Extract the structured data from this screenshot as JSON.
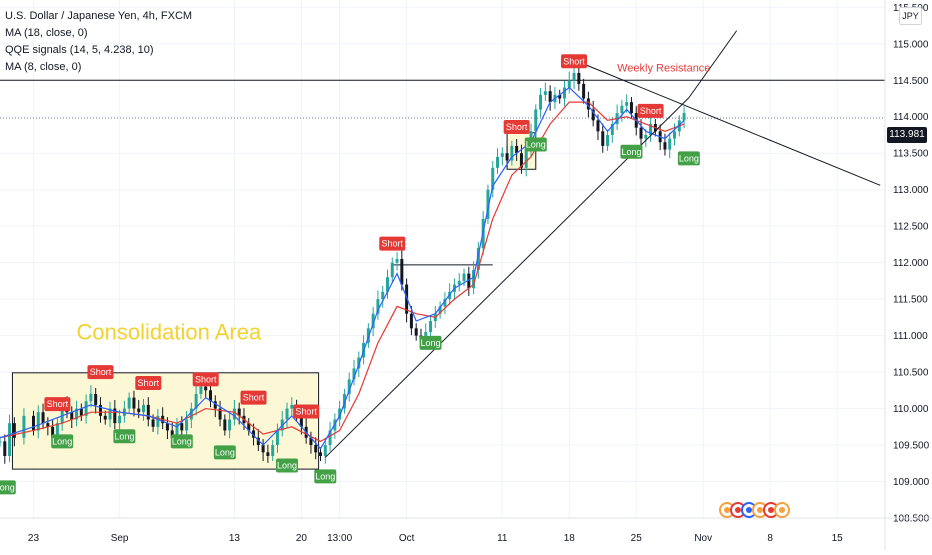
{
  "legend": {
    "title": "U.S. Dollar / Japanese Yen, 4h, FXCM",
    "ma1": "MA (18, close, 0)",
    "qqe": "QQE signals (14, 5, 4.238, 10)",
    "ma2": "MA (8, close, 0)"
  },
  "currency_button": "JPY",
  "last_price_label": "113.981",
  "colors": {
    "up": "#26a69a",
    "down": "#131722",
    "ma_fast": "#2962ff",
    "ma_slow": "#e53935",
    "long": "#43a047",
    "short": "#e53935",
    "box_fill": "#fcf8d6"
  },
  "chart_data": {
    "type": "candlestick",
    "symbol": "USDJPY",
    "timeframe": "4h",
    "y_ticks": [
      "115.500",
      "115.000",
      "114.500",
      "114.000",
      "113.500",
      "113.000",
      "112.500",
      "112.000",
      "111.500",
      "111.000",
      "110.500",
      "110.000",
      "109.500",
      "109.000",
      "108.500"
    ],
    "ylim": [
      108.5,
      115.6
    ],
    "x_ticks": [
      {
        "label": "23",
        "x": 0
      },
      {
        "label": "Sep",
        "x": 9
      },
      {
        "label": "13",
        "x": 21
      },
      {
        "label": "20",
        "x": 28
      },
      {
        "label": "13:00",
        "x": 32
      },
      {
        "label": "Oct",
        "x": 39
      },
      {
        "label": "11",
        "x": 49
      },
      {
        "label": "18",
        "x": 56
      },
      {
        "label": "25",
        "x": 63
      },
      {
        "label": "Nov",
        "x": 70
      },
      {
        "label": "8",
        "x": 77
      },
      {
        "label": "15",
        "x": 84
      }
    ],
    "xlim": [
      -3.5,
      89
    ],
    "close_path": [
      [
        -3.5,
        109.55
      ],
      [
        -3,
        109.35
      ],
      [
        -2.5,
        109.8
      ],
      [
        -2,
        109.6
      ],
      [
        -1,
        109.9
      ],
      [
        0,
        109.7
      ],
      [
        0.5,
        109.95
      ],
      [
        1,
        109.8
      ],
      [
        1.5,
        109.75
      ],
      [
        2,
        109.6
      ],
      [
        2.5,
        109.8
      ],
      [
        3,
        110.05
      ],
      [
        3.5,
        109.95
      ],
      [
        4,
        109.85
      ],
      [
        4.5,
        110.0
      ],
      [
        5,
        109.9
      ],
      [
        5.5,
        110.1
      ],
      [
        6,
        110.2
      ],
      [
        6.5,
        110.05
      ],
      [
        7,
        109.9
      ],
      [
        7.5,
        109.85
      ],
      [
        8,
        110.0
      ],
      [
        8.5,
        109.8
      ],
      [
        9,
        109.9
      ],
      [
        9.5,
        110.0
      ],
      [
        10,
        110.15
      ],
      [
        10.5,
        110.0
      ],
      [
        11,
        109.95
      ],
      [
        11.5,
        110.05
      ],
      [
        12,
        109.85
      ],
      [
        12.5,
        109.75
      ],
      [
        13,
        109.9
      ],
      [
        13.5,
        109.8
      ],
      [
        14,
        109.7
      ],
      [
        14.5,
        109.6
      ],
      [
        15,
        109.8
      ],
      [
        15.5,
        109.7
      ],
      [
        16,
        109.85
      ],
      [
        16.5,
        110.0
      ],
      [
        17,
        110.2
      ],
      [
        17.5,
        110.3
      ],
      [
        18,
        110.25
      ],
      [
        18.5,
        110.1
      ],
      [
        19,
        110.0
      ],
      [
        19.5,
        109.85
      ],
      [
        20,
        109.7
      ],
      [
        20.5,
        109.85
      ],
      [
        21,
        110.0
      ],
      [
        21.5,
        109.9
      ],
      [
        22,
        109.8
      ],
      [
        22.5,
        109.7
      ],
      [
        23,
        109.6
      ],
      [
        23.5,
        109.5
      ],
      [
        24,
        109.4
      ],
      [
        24.5,
        109.35
      ],
      [
        25,
        109.5
      ],
      [
        25.5,
        109.7
      ],
      [
        26,
        109.85
      ],
      [
        26.5,
        110.0
      ],
      [
        27,
        110.05
      ],
      [
        27.5,
        109.9
      ],
      [
        28,
        109.75
      ],
      [
        28.5,
        109.6
      ],
      [
        29,
        109.5
      ],
      [
        29.5,
        109.4
      ],
      [
        30,
        109.35
      ],
      [
        30.5,
        109.5
      ],
      [
        31,
        109.7
      ],
      [
        31.5,
        109.85
      ],
      [
        32,
        110.0
      ],
      [
        32.5,
        110.2
      ],
      [
        33,
        110.4
      ],
      [
        33.5,
        110.55
      ],
      [
        34,
        110.7
      ],
      [
        34.5,
        110.9
      ],
      [
        35,
        111.1
      ],
      [
        35.5,
        111.3
      ],
      [
        36,
        111.5
      ],
      [
        36.5,
        111.6
      ],
      [
        37,
        111.8
      ],
      [
        37.5,
        112.0
      ],
      [
        38,
        112.05
      ],
      [
        38.5,
        111.7
      ],
      [
        39,
        111.3
      ],
      [
        39.5,
        111.1
      ],
      [
        40,
        111.0
      ],
      [
        40.5,
        110.95
      ],
      [
        41,
        111.05
      ],
      [
        41.5,
        111.2
      ],
      [
        42,
        111.3
      ],
      [
        42.5,
        111.4
      ],
      [
        43,
        111.5
      ],
      [
        43.5,
        111.6
      ],
      [
        44,
        111.7
      ],
      [
        44.5,
        111.75
      ],
      [
        45,
        111.85
      ],
      [
        45.5,
        111.65
      ],
      [
        46,
        111.9
      ],
      [
        46.5,
        112.2
      ],
      [
        47,
        112.6
      ],
      [
        47.5,
        113.0
      ],
      [
        48,
        113.3
      ],
      [
        48.5,
        113.45
      ],
      [
        49,
        113.5
      ],
      [
        49.5,
        113.4
      ],
      [
        50,
        113.6
      ],
      [
        50.5,
        113.5
      ],
      [
        51,
        113.3
      ],
      [
        51.5,
        113.55
      ],
      [
        52,
        113.8
      ],
      [
        52.5,
        114.1
      ],
      [
        53,
        114.3
      ],
      [
        53.5,
        114.35
      ],
      [
        54,
        114.2
      ],
      [
        54.5,
        114.3
      ],
      [
        55,
        114.25
      ],
      [
        55.5,
        114.4
      ],
      [
        56,
        114.5
      ],
      [
        56.5,
        114.6
      ],
      [
        57,
        114.45
      ],
      [
        57.5,
        114.25
      ],
      [
        58,
        114.1
      ],
      [
        58.5,
        113.95
      ],
      [
        59,
        113.8
      ],
      [
        59.5,
        113.6
      ],
      [
        60,
        113.75
      ],
      [
        60.5,
        113.9
      ],
      [
        61,
        114.05
      ],
      [
        61.5,
        114.15
      ],
      [
        62,
        114.2
      ],
      [
        62.5,
        114.05
      ],
      [
        63,
        113.85
      ],
      [
        63.5,
        113.7
      ],
      [
        64,
        113.75
      ],
      [
        64.5,
        113.9
      ],
      [
        65,
        113.8
      ],
      [
        65.5,
        113.65
      ],
      [
        66,
        113.55
      ],
      [
        66.5,
        113.7
      ],
      [
        67,
        113.8
      ],
      [
        67.5,
        113.95
      ],
      [
        68,
        114.05
      ]
    ],
    "ma_fast_path": [
      [
        -3.5,
        109.6
      ],
      [
        0,
        109.75
      ],
      [
        3,
        109.9
      ],
      [
        6,
        110.05
      ],
      [
        9,
        109.95
      ],
      [
        12,
        109.9
      ],
      [
        15,
        109.75
      ],
      [
        18,
        110.15
      ],
      [
        21,
        109.9
      ],
      [
        24,
        109.5
      ],
      [
        27,
        109.9
      ],
      [
        30,
        109.45
      ],
      [
        32,
        109.9
      ],
      [
        34,
        110.6
      ],
      [
        36,
        111.35
      ],
      [
        38,
        111.85
      ],
      [
        40,
        111.2
      ],
      [
        42,
        111.3
      ],
      [
        44,
        111.65
      ],
      [
        46,
        111.8
      ],
      [
        48,
        113.05
      ],
      [
        50,
        113.45
      ],
      [
        52,
        113.65
      ],
      [
        54,
        114.2
      ],
      [
        56,
        114.4
      ],
      [
        58,
        114.15
      ],
      [
        60,
        113.8
      ],
      [
        62,
        114.1
      ],
      [
        64,
        113.8
      ],
      [
        66,
        113.7
      ],
      [
        68,
        113.95
      ]
    ],
    "ma_slow_path": [
      [
        -3.5,
        109.6
      ],
      [
        0,
        109.7
      ],
      [
        3,
        109.8
      ],
      [
        6,
        109.95
      ],
      [
        9,
        109.95
      ],
      [
        12,
        109.9
      ],
      [
        15,
        109.8
      ],
      [
        18,
        110.0
      ],
      [
        21,
        109.95
      ],
      [
        24,
        109.65
      ],
      [
        27,
        109.75
      ],
      [
        30,
        109.55
      ],
      [
        32,
        109.7
      ],
      [
        34,
        110.2
      ],
      [
        36,
        110.9
      ],
      [
        38,
        111.4
      ],
      [
        40,
        111.3
      ],
      [
        42,
        111.25
      ],
      [
        44,
        111.5
      ],
      [
        46,
        111.7
      ],
      [
        48,
        112.6
      ],
      [
        50,
        113.2
      ],
      [
        52,
        113.45
      ],
      [
        54,
        113.9
      ],
      [
        56,
        114.2
      ],
      [
        58,
        114.2
      ],
      [
        60,
        113.95
      ],
      [
        62,
        114.0
      ],
      [
        64,
        113.9
      ],
      [
        66,
        113.8
      ],
      [
        68,
        113.9
      ]
    ],
    "signals": [
      {
        "type": "Long",
        "x": -3,
        "y": 108.92
      },
      {
        "type": "Long",
        "x": 3,
        "y": 109.55
      },
      {
        "type": "Short",
        "x": 2.5,
        "y": 110.06
      },
      {
        "type": "Short",
        "x": 7,
        "y": 110.5
      },
      {
        "type": "Long",
        "x": 9.5,
        "y": 109.62
      },
      {
        "type": "Short",
        "x": 12,
        "y": 110.35
      },
      {
        "type": "Long",
        "x": 15.5,
        "y": 109.55
      },
      {
        "type": "Short",
        "x": 18,
        "y": 110.4
      },
      {
        "type": "Long",
        "x": 20,
        "y": 109.4
      },
      {
        "type": "Short",
        "x": 23,
        "y": 110.15
      },
      {
        "type": "Long",
        "x": 26.5,
        "y": 109.22
      },
      {
        "type": "Short",
        "x": 28.5,
        "y": 109.96
      },
      {
        "type": "Long",
        "x": 30.5,
        "y": 109.07
      },
      {
        "type": "Short",
        "x": 37.5,
        "y": 112.26
      },
      {
        "type": "Long",
        "x": 41.5,
        "y": 110.9
      },
      {
        "type": "Short",
        "x": 50.5,
        "y": 113.86
      },
      {
        "type": "Long",
        "x": 52.5,
        "y": 113.62
      },
      {
        "type": "Short",
        "x": 56.5,
        "y": 114.76
      },
      {
        "type": "Long",
        "x": 62.5,
        "y": 113.52
      },
      {
        "type": "Short",
        "x": 64.5,
        "y": 114.08
      },
      {
        "type": "Long",
        "x": 68.5,
        "y": 113.43
      }
    ],
    "annotations": {
      "consolidation_label": "Consolidation Area",
      "consolidation_box": {
        "x0": -2.2,
        "x1": 29.8,
        "y0": 109.17,
        "y1": 110.49
      },
      "right_box": {
        "x0": 49.5,
        "x1": 52.5,
        "y0": 113.28,
        "y1": 113.78
      },
      "weekly_resistance_label": "Weekly Resistance",
      "weekly_resistance_level": 114.5,
      "last_price": 113.981,
      "uptrend_line": [
        [
          30.5,
          109.33
        ],
        [
          68.5,
          114.26
        ]
      ],
      "trend_extension": [
        [
          68.5,
          114.26
        ],
        [
          73.5,
          115.18
        ]
      ],
      "downtrend_line": [
        [
          57,
          114.75
        ],
        [
          88.5,
          113.06
        ]
      ],
      "level_112": {
        "x0": 37.5,
        "x1": 48,
        "y": 111.97
      }
    }
  }
}
